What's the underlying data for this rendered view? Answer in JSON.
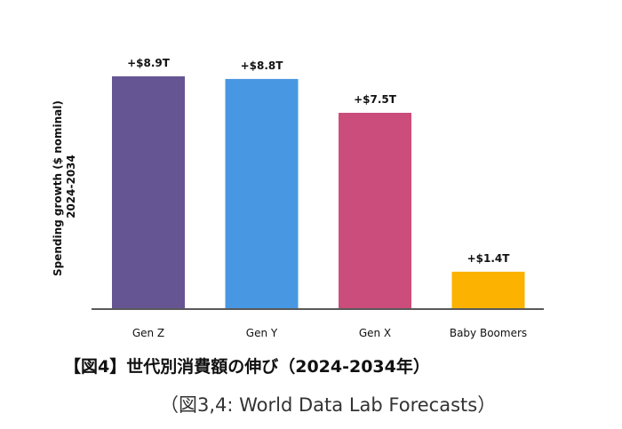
{
  "chart_data": {
    "type": "bar",
    "categories": [
      "Gen Z",
      "Gen Y",
      "Gen X",
      "Baby Boomers"
    ],
    "values": [
      8.9,
      8.8,
      7.5,
      1.4
    ],
    "data_labels": [
      "+$8.9T",
      "+$8.8T",
      "+$7.5T",
      "+$1.4T"
    ],
    "colors": [
      "#665593",
      "#4897e3",
      "#cb4d7c",
      "#fbb200"
    ],
    "ylabel_lines": [
      "Spending growth ($ nominal)",
      "2024-2034"
    ],
    "ylim": [
      0,
      9
    ],
    "grid": false,
    "legend": "none"
  },
  "caption": {
    "title": "【図4】世代別消費額の伸び（2024-2034年）",
    "source": "（図3,4: World Data Lab Forecasts）"
  }
}
